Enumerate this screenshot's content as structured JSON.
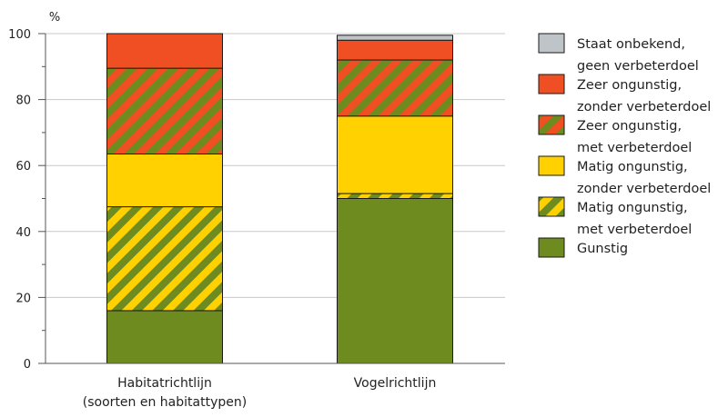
{
  "chart_data": {
    "type": "bar",
    "stacked": true,
    "ylabel": "%",
    "ylim": [
      0,
      100
    ],
    "y_ticks": [
      0,
      20,
      40,
      60,
      80,
      100
    ],
    "grid": true,
    "legend_position": "right",
    "categories": [
      [
        "Habitatrichtlijn",
        "(soorten en habitattypen)"
      ],
      [
        "Vogelrichtlijn"
      ]
    ],
    "series": [
      {
        "name": [
          "Gunstig"
        ],
        "color": "#6e8b1f",
        "pattern": "solid",
        "values": [
          16,
          50
        ]
      },
      {
        "name": [
          "Matig ongunstig,",
          "met verbeterdoel"
        ],
        "color": "#6e8b1f",
        "stripe_color": "#ffd100",
        "pattern": "striped",
        "values": [
          31.5,
          1.5
        ]
      },
      {
        "name": [
          "Matig ongunstig,",
          "zonder verbeterdoel"
        ],
        "color": "#ffd100",
        "pattern": "solid",
        "values": [
          16,
          23.5
        ]
      },
      {
        "name": [
          "Zeer ongunstig,",
          "met verbeterdoel"
        ],
        "color": "#6e8b1f",
        "stripe_color": "#f04e23",
        "pattern": "striped",
        "values": [
          26,
          17
        ]
      },
      {
        "name": [
          "Zeer ongunstig,",
          "zonder verbeterdoel"
        ],
        "color": "#f04e23",
        "pattern": "solid",
        "values": [
          10.5,
          6
        ]
      },
      {
        "name": [
          "Staat onbekend,",
          "geen verbeterdoel"
        ],
        "color": "#bfc4c9",
        "pattern": "solid",
        "values": [
          0,
          1.5
        ]
      }
    ]
  }
}
